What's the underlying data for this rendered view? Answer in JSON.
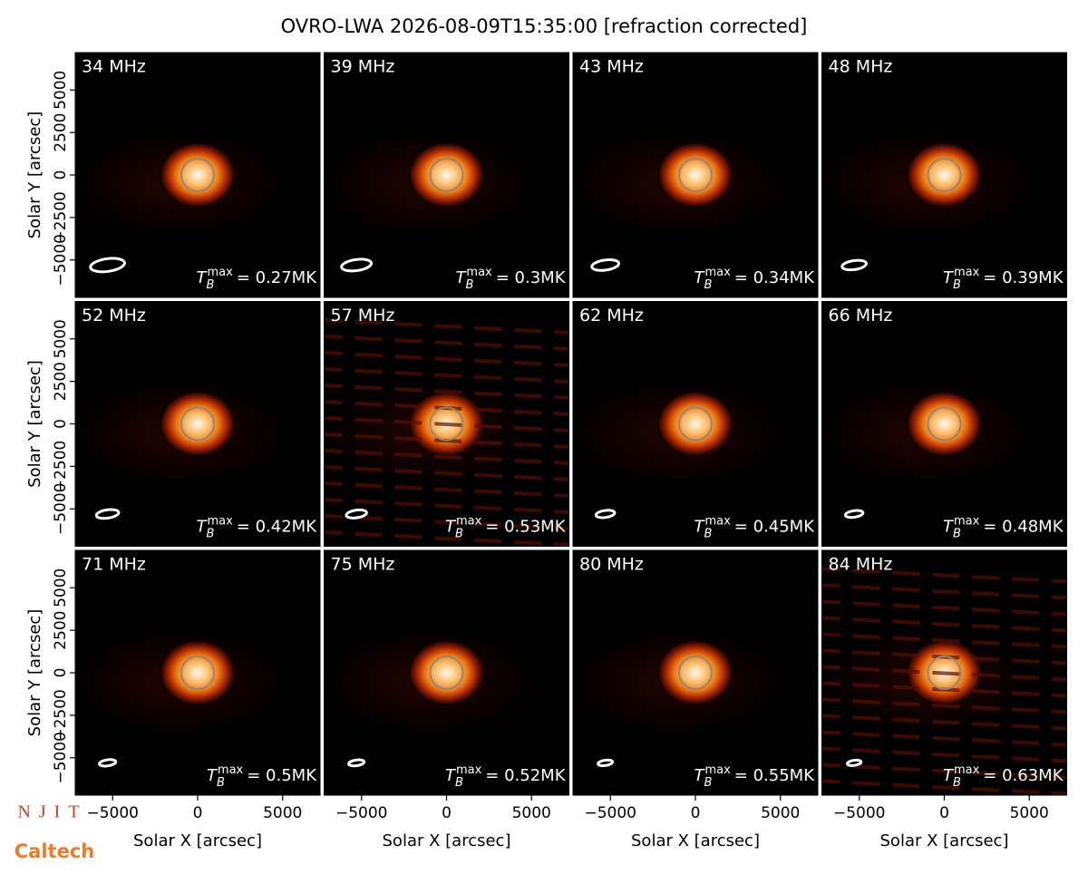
{
  "figure": {
    "title": "OVRO-LWA 2026-08-09T15:35:00 [refraction corrected]",
    "logos": [
      "NJIT",
      "Caltech"
    ]
  },
  "chart_data": [
    {
      "type": "image",
      "title": "34 MHz",
      "tb_symbol": "T",
      "tb_sub": "B",
      "tb_sup": "max",
      "tb_max": {
        "value": 0.27,
        "label": "= 0.27MK"
      },
      "xlim": [
        -7200,
        7200
      ],
      "ylim": [
        -7200,
        7200
      ],
      "y_label": "Solar Y [arcsec]",
      "yticks": [
        {
          "value": -5000,
          "label": "−5000"
        },
        {
          "value": -2500,
          "label": "−2500"
        },
        0,
        2500,
        5000
      ]
    },
    {
      "type": "image",
      "title": "39 MHz",
      "tb_symbol": "T",
      "tb_sub": "B",
      "tb_sup": "max",
      "tb_max": {
        "value": 0.3,
        "label": "= 0.3MK"
      },
      "xlim": [
        -7200,
        7200
      ],
      "ylim": [
        -7200,
        7200
      ]
    },
    {
      "type": "image",
      "title": "43 MHz",
      "tb_symbol": "T",
      "tb_sub": "B",
      "tb_sup": "max",
      "tb_max": {
        "value": 0.34,
        "label": "= 0.34MK"
      },
      "xlim": [
        -7200,
        7200
      ],
      "ylim": [
        -7200,
        7200
      ]
    },
    {
      "type": "image",
      "title": "48 MHz",
      "tb_symbol": "T",
      "tb_sub": "B",
      "tb_sup": "max",
      "tb_max": {
        "value": 0.39,
        "label": "= 0.39MK"
      },
      "xlim": [
        -7200,
        7200
      ],
      "ylim": [
        -7200,
        7200
      ]
    },
    {
      "type": "image",
      "title": "52 MHz",
      "tb_symbol": "T",
      "tb_sub": "B",
      "tb_sup": "max",
      "tb_max": {
        "value": 0.42,
        "label": "= 0.42MK"
      },
      "xlim": [
        -7200,
        7200
      ],
      "ylim": [
        -7200,
        7200
      ],
      "y_label": "Solar Y [arcsec]",
      "yticks": [
        {
          "value": -5000,
          "label": "−5000"
        },
        {
          "value": -2500,
          "label": "−2500"
        },
        0,
        2500,
        5000
      ]
    },
    {
      "type": "image",
      "title": "57 MHz",
      "tb_symbol": "T",
      "tb_sub": "B",
      "tb_sup": "max",
      "tb_max": {
        "value": 0.53,
        "label": "= 0.53MK"
      },
      "xlim": [
        -7200,
        7200
      ],
      "ylim": [
        -7200,
        7200
      ]
    },
    {
      "type": "image",
      "title": "62 MHz",
      "tb_symbol": "T",
      "tb_sub": "B",
      "tb_sup": "max",
      "tb_max": {
        "value": 0.45,
        "label": "= 0.45MK"
      },
      "xlim": [
        -7200,
        7200
      ],
      "ylim": [
        -7200,
        7200
      ]
    },
    {
      "type": "image",
      "title": "66 MHz",
      "tb_symbol": "T",
      "tb_sub": "B",
      "tb_sup": "max",
      "tb_max": {
        "value": 0.48,
        "label": "= 0.48MK"
      },
      "xlim": [
        -7200,
        7200
      ],
      "ylim": [
        -7200,
        7200
      ]
    },
    {
      "type": "image",
      "title": "71 MHz",
      "tb_symbol": "T",
      "tb_sub": "B",
      "tb_sup": "max",
      "tb_max": {
        "value": 0.5,
        "label": "= 0.5MK"
      },
      "xlim": [
        -7200,
        7200
      ],
      "ylim": [
        -7200,
        7200
      ],
      "y_label": "Solar Y [arcsec]",
      "yticks": [
        {
          "value": -5000,
          "label": "−5000"
        },
        {
          "value": -2500,
          "label": "−2500"
        },
        0,
        2500,
        5000
      ],
      "x_label": "Solar X [arcsec]",
      "xticks": [
        {
          "value": -5000,
          "label": "−5000"
        },
        0,
        5000
      ]
    },
    {
      "type": "image",
      "title": "75 MHz",
      "tb_symbol": "T",
      "tb_sub": "B",
      "tb_sup": "max",
      "tb_max": {
        "value": 0.52,
        "label": "= 0.52MK"
      },
      "xlim": [
        -7200,
        7200
      ],
      "ylim": [
        -7200,
        7200
      ],
      "x_label": "Solar X [arcsec]",
      "xticks": [
        {
          "value": -5000,
          "label": "−5000"
        },
        0,
        5000
      ]
    },
    {
      "type": "image",
      "title": "80 MHz",
      "tb_symbol": "T",
      "tb_sub": "B",
      "tb_sup": "max",
      "tb_max": {
        "value": 0.55,
        "label": "= 0.55MK"
      },
      "xlim": [
        -7200,
        7200
      ],
      "ylim": [
        -7200,
        7200
      ],
      "x_label": "Solar X [arcsec]",
      "xticks": [
        {
          "value": -5000,
          "label": "−5000"
        },
        0,
        5000
      ]
    },
    {
      "type": "image",
      "title": "84 MHz",
      "tb_symbol": "T",
      "tb_sub": "B",
      "tb_sup": "max",
      "tb_max": {
        "value": 0.63,
        "label": "= 0.63MK"
      },
      "xlim": [
        -7200,
        7200
      ],
      "ylim": [
        -7200,
        7200
      ],
      "x_label": "Solar X [arcsec]",
      "xticks": [
        {
          "value": -5000,
          "label": "−5000"
        },
        0,
        5000
      ]
    }
  ]
}
